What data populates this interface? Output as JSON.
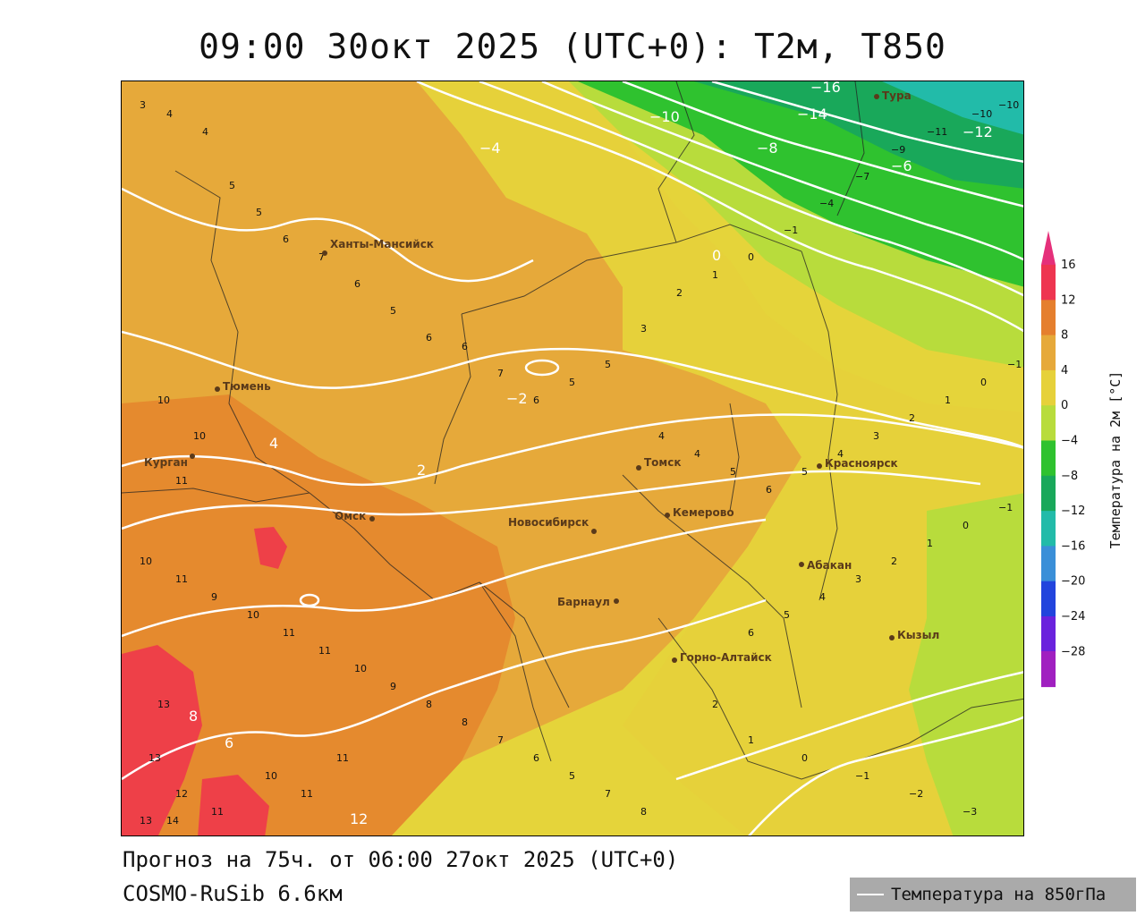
{
  "title": "09:00 30окт 2025 (UTC+0): T2м, T850",
  "forecast_text": "Прогноз на 75ч. от 06:00 27окт 2025 (UTC+0)",
  "model_text": "COSMO-RuSib 6.6км",
  "legend": {
    "line_label": "Температура на 850гПа",
    "line_color": "#ffffff"
  },
  "colorbar": {
    "title": "Температура на 2м [°C]",
    "ticks": [
      "16",
      "12",
      "8",
      "4",
      "0",
      "−4",
      "−8",
      "−12",
      "−16",
      "−20",
      "−24",
      "−28"
    ],
    "colors": [
      "#ee3550",
      "#e57f2e",
      "#e6a93a",
      "#e6d13a",
      "#b8dc3c",
      "#2fc22f",
      "#19a85a",
      "#22bba9",
      "#3a8fd8",
      "#2244dd",
      "#6a22dd",
      "#a020c0"
    ]
  },
  "cities": [
    {
      "name": "Тура"
    },
    {
      "name": "Ханты-Мансийск"
    },
    {
      "name": "Тюмень"
    },
    {
      "name": "Курган"
    },
    {
      "name": "Омск"
    },
    {
      "name": "Новосибирск"
    },
    {
      "name": "Томск"
    },
    {
      "name": "Кемерово"
    },
    {
      "name": "Красноярск"
    },
    {
      "name": "Абакан"
    },
    {
      "name": "Барнаул"
    },
    {
      "name": "Горно-Алтайск"
    },
    {
      "name": "Кызыл"
    }
  ],
  "isotherm_labels": [
    "−16",
    "−14",
    "−12",
    "−10",
    "−8",
    "−6",
    "−4",
    "−2",
    "0",
    "2",
    "4",
    "6",
    "8",
    "12"
  ]
}
